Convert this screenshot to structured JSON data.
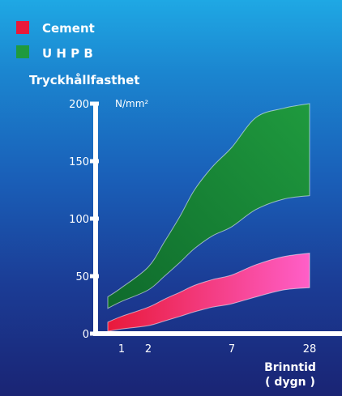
{
  "chart_data": {
    "type": "area",
    "title": "",
    "ylabel": "Tryckhållfasthet",
    "yunit": "N/mm²",
    "xlabel": "Brinntid",
    "xlabel_unit": "( dygn )",
    "ylim": [
      0,
      200
    ],
    "yticks": [
      0,
      50,
      100,
      150,
      200
    ],
    "xticks": [
      1,
      2,
      7,
      28
    ],
    "x": [
      0.5,
      1,
      2,
      3,
      4,
      5,
      6,
      7,
      14,
      21,
      28
    ],
    "legend_position": "top-left",
    "series": [
      {
        "name": "Cement",
        "color": "#e8193a",
        "color_end": "#ff5fc8",
        "lower": [
          2,
          4,
          7,
          11,
          15,
          19,
          23,
          26,
          32,
          38,
          40
        ],
        "upper": [
          10,
          15,
          23,
          30,
          36,
          42,
          47,
          51,
          60,
          67,
          70
        ]
      },
      {
        "name": "U H P B",
        "color": "#0f6a2c",
        "color_end": "#1f9a3e",
        "lower": [
          22,
          28,
          38,
          50,
          62,
          74,
          85,
          93,
          108,
          117,
          120
        ],
        "upper": [
          32,
          40,
          58,
          80,
          102,
          125,
          145,
          162,
          188,
          196,
          200
        ]
      }
    ]
  }
}
